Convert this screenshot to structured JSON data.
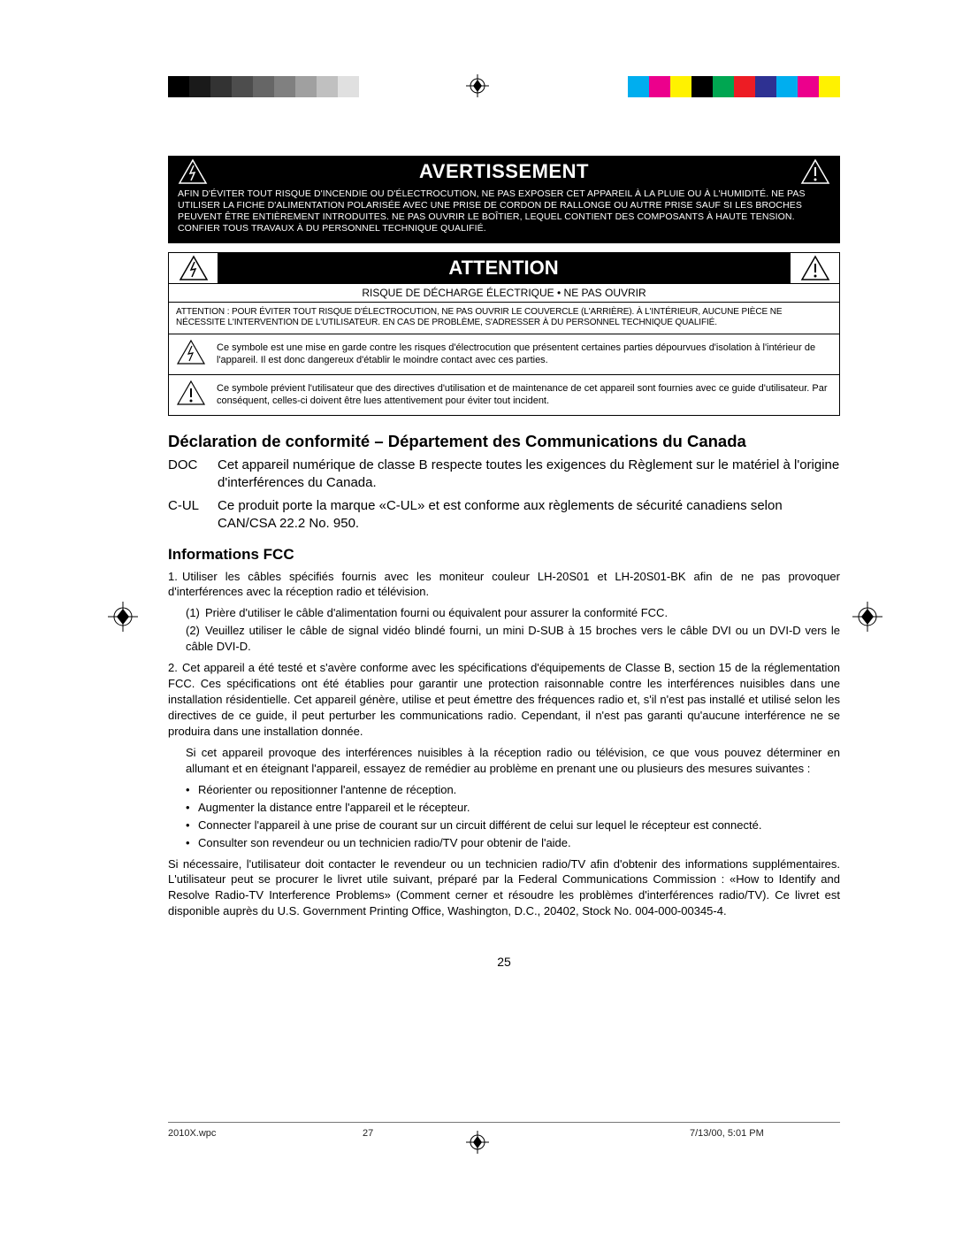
{
  "colorbar": {
    "left": [
      "#000000",
      "#1a1a1a",
      "#333333",
      "#4d4d4d",
      "#666666",
      "#808080",
      "#a0a0a0",
      "#c0c0c0",
      "#e0e0e0",
      "#ffffff"
    ],
    "right": [
      "#00aeef",
      "#ec008c",
      "#fff200",
      "#000000",
      "#00a651",
      "#ed1c24",
      "#2e3192",
      "#00aeef",
      "#ec008c",
      "#fff200"
    ]
  },
  "warning": {
    "title": "AVERTISSEMENT",
    "body": "AFIN D'ÉVITER TOUT RISQUE D'INCENDIE OU D'ÉLECTROCUTION, NE PAS EXPOSER CET APPAREIL À LA PLUIE OU À L'HUMIDITÉ. NE PAS UTILISER LA FICHE D'ALIMENTATION POLARISÉE AVEC UNE PRISE DE CORDON DE RALLONGE OU AUTRE PRISE SAUF SI LES BROCHES PEUVENT ÊTRE ENTIÈREMENT INTRODUITES. NE PAS OUVRIR LE BOÎTIER, LEQUEL CONTIENT DES COMPOSANTS À HAUTE TENSION. CONFIER TOUS TRAVAUX À DU PERSONNEL TECHNIQUE QUALIFIÉ."
  },
  "attention": {
    "title": "ATTENTION",
    "sub": "RISQUE DE DÉCHARGE ÉLECTRIQUE • NE PAS OUVRIR",
    "body": "ATTENTION : POUR ÉVITER TOUT RISQUE D'ÉLECTROCUTION, NE PAS OUVRIR LE COUVERCLE (L'ARRIÈRE). À L'INTÉRIEUR, AUCUNE PIÈCE NE NÉCESSITE L'INTERVENTION DE L'UTILISATEUR. EN CAS DE PROBLÈME, S'ADRESSER À DU PERSONNEL TECHNIQUE QUALIFIÉ.",
    "sym1": "Ce symbole est une mise en garde contre les risques d'électrocution que présentent certaines parties dépourvues d'isolation à l'intérieur de l'appareil. Il est donc dangereux d'établir le moindre contact avec ces parties.",
    "sym2": "Ce symbole prévient l'utilisateur que des directives d'utilisation et de maintenance de cet appareil sont fournies avec ce guide d'utilisateur. Par conséquent, celles-ci doivent être lues attentivement pour éviter tout incident."
  },
  "declaration": {
    "title": "Déclaration de conformité – Département des Communications du Canada",
    "doc_label": "DOC",
    "doc_text": "Cet appareil numérique de classe B respecte toutes les exigences du Règlement sur le matériel à l'origine d'interférences du Canada.",
    "cul_label": "C-UL",
    "cul_text": "Ce produit porte la marque «C-UL» et est conforme aux règlements de sécurité canadiens selon CAN/CSA 22.2 No. 950."
  },
  "fcc": {
    "title": "Informations FCC",
    "i1": "Utiliser les câbles spécifiés fournis avec les moniteur couleur LH-20S01 et LH-20S01-BK afin de ne pas provoquer d'interférences avec la réception radio et télévision.",
    "i1a": "Prière d'utiliser le câble d'alimentation fourni ou équivalent pour assurer la conformité FCC.",
    "i1b": "Veuillez utiliser le câble de signal vidéo blindé fourni, un mini D-SUB à 15 broches vers le câble DVI ou un DVI-D vers le câble DVI-D.",
    "i2": "Cet appareil a été testé et s'avère conforme avec les spécifications d'équipements de Classe B, section 15 de la réglementation FCC. Ces spécifications ont été établies pour garantir une protection raisonnable contre les interférences nuisibles dans une installation résidentielle. Cet appareil génère, utilise et peut émettre des fréquences radio et, s'il n'est pas installé et utilisé selon les directives de ce guide, il peut perturber les communications radio. Cependant, il n'est pas garanti qu'aucune interférence ne se produira dans une installation donnée.",
    "p2": "Si cet appareil provoque des interférences nuisibles à la réception radio ou télévision, ce que vous pouvez déterminer en allumant et en éteignant l'appareil, essayez de remédier au problème en prenant une ou plusieurs des mesures suivantes :",
    "b1": "Réorienter ou repositionner l'antenne de réception.",
    "b2": "Augmenter la distance entre l'appareil et le récepteur.",
    "b3": "Connecter l'appareil à une prise de courant sur un circuit différent de celui sur lequel le récepteur est connecté.",
    "b4": "Consulter son revendeur ou un technicien radio/TV pour obtenir de l'aide.",
    "final": "Si nécessaire, l'utilisateur doit contacter le revendeur ou un technicien radio/TV afin d'obtenir des informations supplémentaires. L'utilisateur peut se procurer le livret utile suivant, préparé par la Federal Communications Commission : «How to Identify and Resolve Radio-TV Interference Problems» (Comment cerner et résoudre les problèmes d'interférences radio/TV). Ce livret est disponible auprès du U.S. Government Printing Office, Washington, D.C., 20402, Stock No. 004-000-00345-4."
  },
  "page_number": "25",
  "footer": {
    "file": "2010X.wpc",
    "sheet": "27",
    "date": "7/13/00, 5:01 PM"
  }
}
